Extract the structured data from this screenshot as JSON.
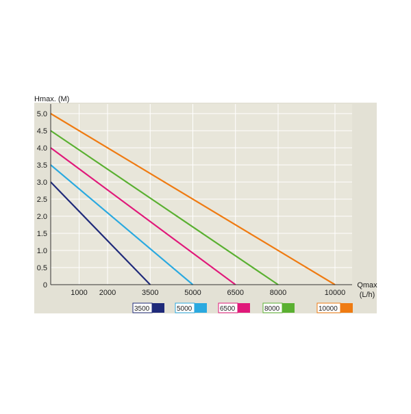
{
  "chart_data": {
    "type": "line",
    "title": "",
    "ylabel": "Hmax. (M)",
    "xlabel_line1": "Qmax",
    "xlabel_line2": "(L/h)",
    "xlim": [
      0,
      10000
    ],
    "ylim": [
      0,
      5.0
    ],
    "x_ticks": [
      1000,
      2000,
      3500,
      5000,
      6500,
      8000,
      10000
    ],
    "x_tick_labels": [
      "1000",
      "2000",
      "3500",
      "5000",
      "6500",
      "8000",
      "10000"
    ],
    "y_ticks": [
      0,
      0.5,
      1.0,
      1.5,
      2.0,
      2.5,
      3.0,
      3.5,
      4.0,
      4.5,
      5.0
    ],
    "y_tick_labels": [
      "0",
      "0.5",
      "1.0",
      "1.5",
      "2.0",
      "2.5",
      "3.0",
      "3.5",
      "4.0",
      "4.5",
      "5.0"
    ],
    "grid": true,
    "legend_position": "bottom",
    "series": [
      {
        "name": "3500",
        "color": "#1f2a7a",
        "points": [
          [
            0,
            3.0
          ],
          [
            3500,
            0
          ]
        ]
      },
      {
        "name": "5000",
        "color": "#2aa9e0",
        "points": [
          [
            0,
            3.5
          ],
          [
            5000,
            0
          ]
        ]
      },
      {
        "name": "6500",
        "color": "#e0197a",
        "points": [
          [
            0,
            4.0
          ],
          [
            6500,
            0
          ]
        ]
      },
      {
        "name": "8000",
        "color": "#5ab031",
        "points": [
          [
            0,
            4.5
          ],
          [
            8000,
            0
          ]
        ]
      },
      {
        "name": "10000",
        "color": "#ef7b12",
        "points": [
          [
            0,
            5.0
          ],
          [
            10000,
            0
          ]
        ]
      }
    ]
  },
  "colors": {
    "panel_background": "#e3e1d5",
    "plot_background": "#e8e6da",
    "grid_line": "#ffffff",
    "axis_line": "#333333"
  }
}
